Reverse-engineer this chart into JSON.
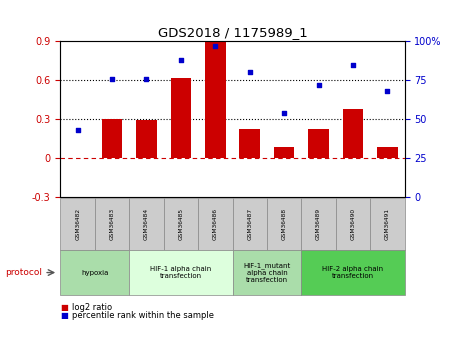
{
  "title": "GDS2018 / 1175989_1",
  "samples": [
    "GSM36482",
    "GSM36483",
    "GSM36484",
    "GSM36485",
    "GSM36486",
    "GSM36487",
    "GSM36488",
    "GSM36489",
    "GSM36490",
    "GSM36491"
  ],
  "log2_ratio": [
    0.0,
    0.3,
    0.29,
    0.62,
    0.9,
    0.22,
    0.08,
    0.22,
    0.38,
    0.08
  ],
  "percentile_rank": [
    43,
    76,
    76,
    88,
    97,
    80,
    54,
    72,
    85,
    68
  ],
  "bar_color": "#cc0000",
  "dot_color": "#0000cc",
  "ylim_left": [
    -0.3,
    0.9
  ],
  "ylim_right": [
    0,
    100
  ],
  "yticks_left": [
    -0.3,
    0.0,
    0.3,
    0.6,
    0.9
  ],
  "yticks_right": [
    0,
    25,
    50,
    75,
    100
  ],
  "ytick_labels_left": [
    "-0.3",
    "0",
    "0.3",
    "0.6",
    "0.9"
  ],
  "ytick_labels_right": [
    "0",
    "25",
    "50",
    "75",
    "100%"
  ],
  "hlines": [
    0.3,
    0.6
  ],
  "protocols": [
    {
      "label": "hypoxia",
      "start": 0,
      "end": 2,
      "color": "#aaddaa"
    },
    {
      "label": "HIF-1 alpha chain\ntransfection",
      "start": 2,
      "end": 5,
      "color": "#ddffdd"
    },
    {
      "label": "HIF-1_mutant\nalpha chain\ntransfection",
      "start": 5,
      "end": 7,
      "color": "#aaddaa"
    },
    {
      "label": "HIF-2 alpha chain\ntransfection",
      "start": 7,
      "end": 10,
      "color": "#55cc55"
    }
  ],
  "legend_items": [
    {
      "label": "log2 ratio",
      "color": "#cc0000"
    },
    {
      "label": "percentile rank within the sample",
      "color": "#0000cc"
    }
  ],
  "background_color": "#ffffff",
  "tick_label_color_left": "#cc0000",
  "tick_label_color_right": "#0000cc",
  "sample_box_color": "#cccccc",
  "protocol_label_color": "#cc0000"
}
